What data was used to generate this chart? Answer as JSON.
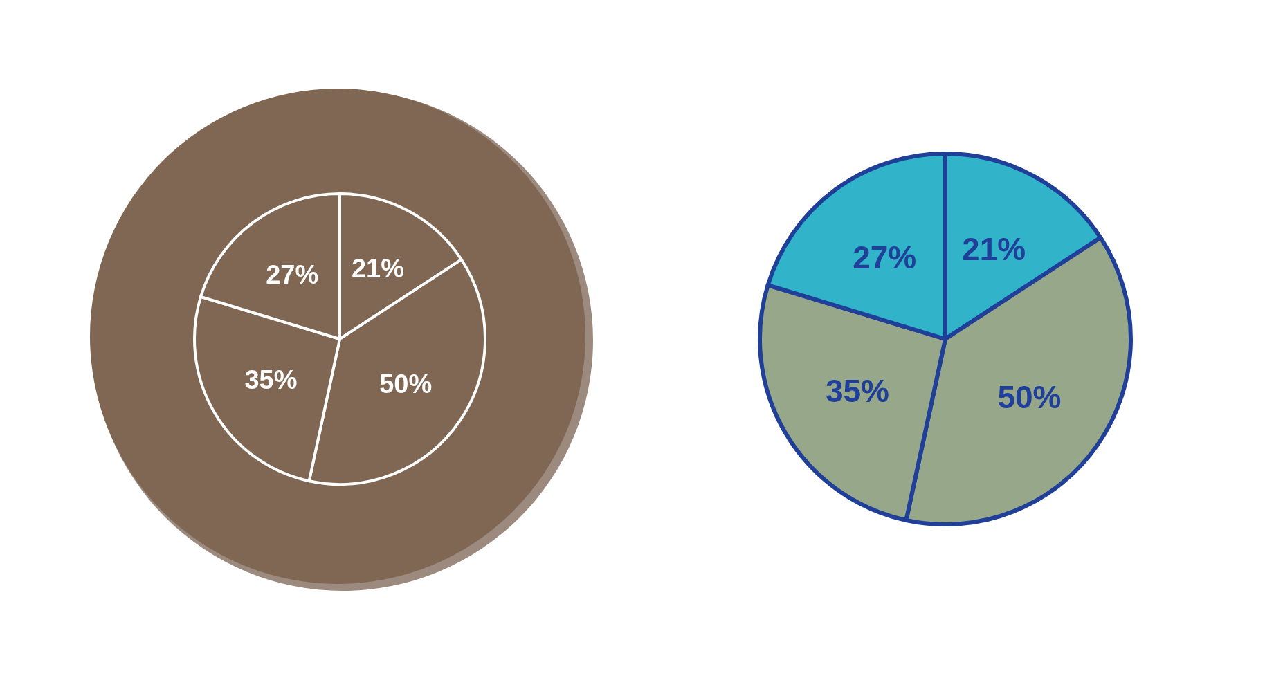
{
  "chart_data": [
    {
      "type": "pie",
      "categories": [
        null,
        null,
        null,
        null
      ],
      "values": [
        21,
        50,
        35,
        27
      ],
      "colors": [
        "#7f6753",
        "#7f6753",
        "#7f6753",
        "#7f6753"
      ],
      "value_labels": [
        "21%",
        "50%",
        "35%",
        "27%"
      ]
    },
    {
      "type": "pie",
      "categories": [
        null,
        null,
        null,
        null
      ],
      "values": [
        21,
        50,
        35,
        27
      ],
      "colors": [
        "#31b3c9",
        "#97a88a",
        "#97a88a",
        "#31b3c9"
      ],
      "value_labels": [
        "21%",
        "50%",
        "35%",
        "27%"
      ]
    }
  ]
}
